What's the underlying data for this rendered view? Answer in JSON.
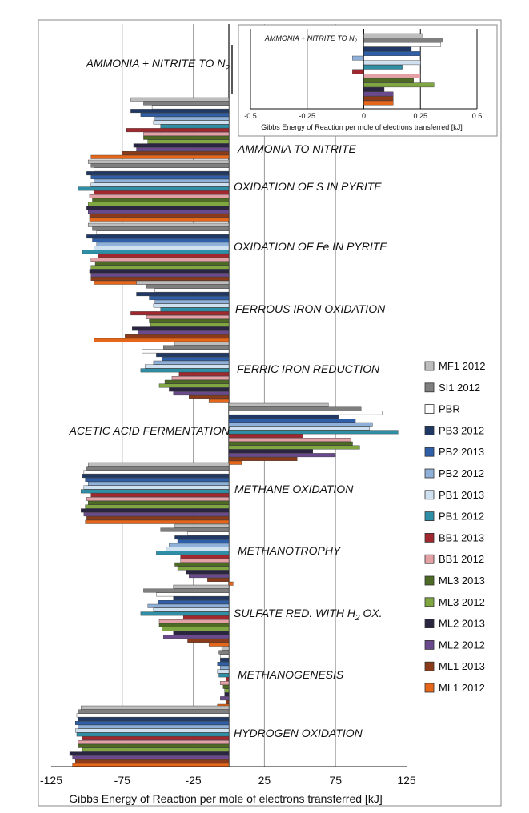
{
  "chart_data": [
    {
      "type": "bar",
      "orientation": "horizontal",
      "xlabel": "Gibbs Energy of Reaction per mole of electrons transferred [kJ]",
      "xlim": [
        -125,
        125
      ],
      "xticks": [
        "-125",
        "-75",
        "-25",
        "25",
        "75",
        "125"
      ],
      "grid": true,
      "legend_position": "right",
      "colors": [
        "#bdbdbd",
        "#7f7f7f",
        "#ffffff",
        "#1f3864",
        "#2e5fa8",
        "#8fb1d9",
        "#cfe0f0",
        "#2e8fa6",
        "#a0282e",
        "#e3a1a6",
        "#4d6b25",
        "#7fa640",
        "#2a2540",
        "#6a4a8c",
        "#8b3a1a",
        "#e6661a"
      ],
      "series_names": [
        "MF1 2012",
        "SI1 2012",
        "PBR",
        "PB3 2012",
        "PB2 2013",
        "PB2 2012",
        "PB1 2013",
        "PB1 2012",
        "BB1 2013",
        "BB1 2012",
        "ML3 2013",
        "ML3 2012",
        "ML2 2013",
        "ML2 2012",
        "ML1 2013",
        "ML1 2012"
      ],
      "reactions": [
        {
          "label": "AMMONIA + NITRITE TO N",
          "subscript": "2",
          "values": [
            0.26,
            0.35,
            0.34,
            0.21,
            0.25,
            -0.05,
            0.25,
            0.17,
            -0.05,
            0.25,
            0.22,
            0.31,
            0.09,
            0.13,
            0.13,
            0.13
          ]
        },
        {
          "label": "AMMONIA TO NITRITE",
          "subscript": "",
          "values": [
            -69,
            -60,
            -54,
            -69,
            -62,
            -52,
            -53,
            -48,
            -72,
            -60,
            -60,
            -57,
            -67,
            -65,
            -75,
            -97
          ]
        },
        {
          "label": "OXIDATION OF S IN PYRITE",
          "subscript": "",
          "values": [
            -99,
            -97,
            -95,
            -100,
            -97,
            -95,
            -97,
            -106,
            -95,
            -98,
            -96,
            -99,
            -100,
            -99,
            -98,
            -98
          ]
        },
        {
          "label": "OXIDATION OF Fe IN PYRITE",
          "subscript": "",
          "values": [
            -99,
            -96,
            -93,
            -100,
            -96,
            -93,
            -95,
            -103,
            -92,
            -97,
            -94,
            -97,
            -98,
            -97,
            -97,
            -95
          ]
        },
        {
          "label": "FERROUS IRON OXIDATION",
          "subscript": "",
          "values": [
            -65,
            -58,
            -52,
            -65,
            -56,
            -52,
            -53,
            -48,
            -69,
            -58,
            -56,
            -55,
            -68,
            -64,
            -73,
            -95
          ]
        },
        {
          "label": "FERRIC IRON REDUCTION",
          "subscript": "",
          "values": [
            -38,
            -46,
            -61,
            -51,
            -47,
            -53,
            -59,
            -62,
            -35,
            -40,
            -45,
            -49,
            -42,
            -39,
            -28,
            -14
          ]
        },
        {
          "label": "ACETIC ACID FERMENTATION",
          "subscript": "",
          "values": [
            70,
            93,
            108,
            77,
            89,
            101,
            99,
            119,
            52,
            86,
            87,
            92,
            59,
            75,
            48,
            9
          ]
        },
        {
          "label": "METHANE OXIDATION",
          "subscript": "",
          "values": [
            -99,
            -100,
            -102,
            -103,
            -101,
            -99,
            -102,
            -104,
            -97,
            -100,
            -99,
            -101,
            -104,
            -102,
            -100,
            -101
          ]
        },
        {
          "label": "METHANOTROPHY",
          "subscript": "",
          "values": [
            -38,
            -48,
            -29,
            -38,
            -36,
            -42,
            -44,
            -51,
            -34,
            -34,
            -38,
            -36,
            -30,
            -28,
            -15,
            3
          ]
        },
        {
          "label": "SULFATE RED. WITH H",
          "subscript": "2",
          "suffix": " OX.",
          "values": [
            -39,
            -60,
            -51,
            -39,
            -50,
            -57,
            -53,
            -62,
            -32,
            -49,
            -49,
            -47,
            -39,
            -46,
            -29,
            -14
          ]
        },
        {
          "label": "METHANOGENESIS",
          "subscript": "",
          "values": [
            -5,
            -7,
            -6,
            -6,
            -8,
            -6,
            -8,
            -7,
            -2,
            -6,
            -4,
            -3,
            -3,
            -6,
            -2,
            -8
          ]
        },
        {
          "label": "HYDROGEN OXIDATION",
          "subscript": "",
          "values": [
            -104,
            -106,
            -107,
            -106,
            -108,
            -106,
            -108,
            -107,
            -103,
            -106,
            -106,
            -103,
            -112,
            -110,
            -108,
            -110
          ]
        }
      ]
    },
    {
      "type": "bar",
      "orientation": "horizontal",
      "inset": true,
      "title": "AMMONIA + NITRITE TO N",
      "title_subscript": "2",
      "xlabel": "Gibbs Energy of Reaction per mole of electrons transferred [kJ]",
      "xlim": [
        -0.5,
        0.5
      ],
      "xticks": [
        "-0.5",
        "-0.25",
        "0",
        "0.25",
        "0.5"
      ],
      "grid": true,
      "values": [
        0.26,
        0.35,
        0.34,
        0.21,
        0.25,
        -0.05,
        0.25,
        0.17,
        -0.05,
        0.25,
        0.22,
        0.31,
        0.09,
        0.13,
        0.13,
        0.13
      ]
    }
  ]
}
